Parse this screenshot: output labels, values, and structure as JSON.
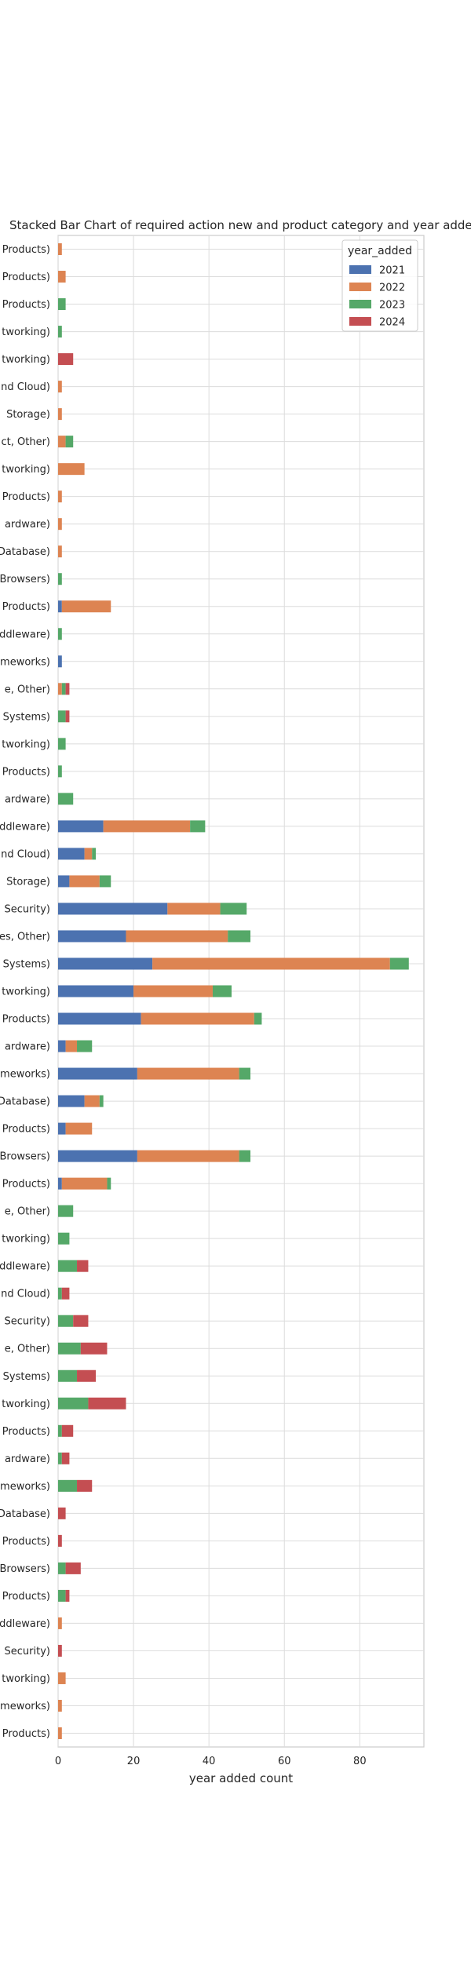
{
  "chart_data": {
    "type": "bar",
    "orientation": "horizontal",
    "stacked": true,
    "title": "Stacked Bar Chart of  required action new and product category and year added",
    "xlabel": "year added count",
    "ylabel": "",
    "xlim": [
      0,
      97
    ],
    "xticks": [
      0,
      20,
      40,
      60,
      80
    ],
    "grid": true,
    "legend": {
      "title": "year_added",
      "position": "top-right"
    },
    "categories": [
      "Products)",
      "Products)",
      "Products)",
      "tworking)",
      "tworking)",
      "nd Cloud)",
      "Storage)",
      "ct, Other)",
      "tworking)",
      "Products)",
      "ardware)",
      "Database)",
      "Browsers)",
      "Products)",
      "ddleware)",
      "meworks)",
      "e, Other)",
      "Systems)",
      "tworking)",
      "Products)",
      "ardware)",
      "ddleware)",
      "nd Cloud)",
      "Storage)",
      "Security)",
      "es, Other)",
      "Systems)",
      "tworking)",
      "Products)",
      "ardware)",
      "meworks)",
      "Database)",
      "Products)",
      "Browsers)",
      "Products)",
      "e, Other)",
      "tworking)",
      "ddleware)",
      "nd Cloud)",
      "Security)",
      "e, Other)",
      "Systems)",
      "tworking)",
      "Products)",
      "ardware)",
      "meworks)",
      "Database)",
      "Products)",
      "Browsers)",
      "Products)",
      "ddleware)",
      "Security)",
      "tworking)",
      "meworks)",
      "Products)"
    ],
    "series": [
      {
        "name": "2021",
        "color": "#4c72b0",
        "values": [
          0,
          0,
          0,
          0,
          0,
          0,
          0,
          0,
          0,
          0,
          0,
          0,
          0,
          1,
          0,
          1,
          0,
          0,
          0,
          0,
          0,
          12,
          7,
          3,
          29,
          18,
          25,
          20,
          22,
          2,
          21,
          7,
          2,
          21,
          1,
          0,
          0,
          0,
          0,
          0,
          0,
          0,
          0,
          0,
          0,
          0,
          0,
          0,
          0,
          0,
          0,
          0,
          0,
          0,
          0
        ]
      },
      {
        "name": "2022",
        "color": "#dd8452",
        "values": [
          1,
          2,
          0,
          0,
          0,
          1,
          1,
          2,
          7,
          1,
          1,
          1,
          0,
          13,
          0,
          0,
          1,
          0,
          0,
          0,
          0,
          23,
          2,
          8,
          14,
          27,
          63,
          21,
          30,
          3,
          27,
          4,
          7,
          27,
          12,
          0,
          0,
          0,
          0,
          0,
          0,
          0,
          0,
          0,
          0,
          0,
          0,
          0,
          0,
          0,
          1,
          0,
          2,
          1,
          1
        ]
      },
      {
        "name": "2023",
        "color": "#55a868",
        "values": [
          0,
          0,
          2,
          1,
          0,
          0,
          0,
          2,
          0,
          0,
          0,
          0,
          1,
          0,
          1,
          0,
          1,
          2,
          2,
          1,
          4,
          4,
          1,
          3,
          7,
          6,
          5,
          5,
          2,
          4,
          3,
          1,
          0,
          3,
          1,
          4,
          3,
          5,
          1,
          4,
          6,
          5,
          8,
          1,
          1,
          5,
          0,
          0,
          2,
          2,
          0,
          0,
          0,
          0,
          0
        ]
      },
      {
        "name": "2024",
        "color": "#c44e52",
        "values": [
          0,
          0,
          0,
          0,
          4,
          0,
          0,
          0,
          0,
          0,
          0,
          0,
          0,
          0,
          0,
          0,
          1,
          1,
          0,
          0,
          0,
          0,
          0,
          0,
          0,
          0,
          0,
          0,
          0,
          0,
          0,
          0,
          0,
          0,
          0,
          0,
          0,
          3,
          2,
          4,
          7,
          5,
          10,
          3,
          2,
          4,
          2,
          1,
          4,
          1,
          0,
          1,
          0,
          0,
          0
        ]
      }
    ]
  }
}
